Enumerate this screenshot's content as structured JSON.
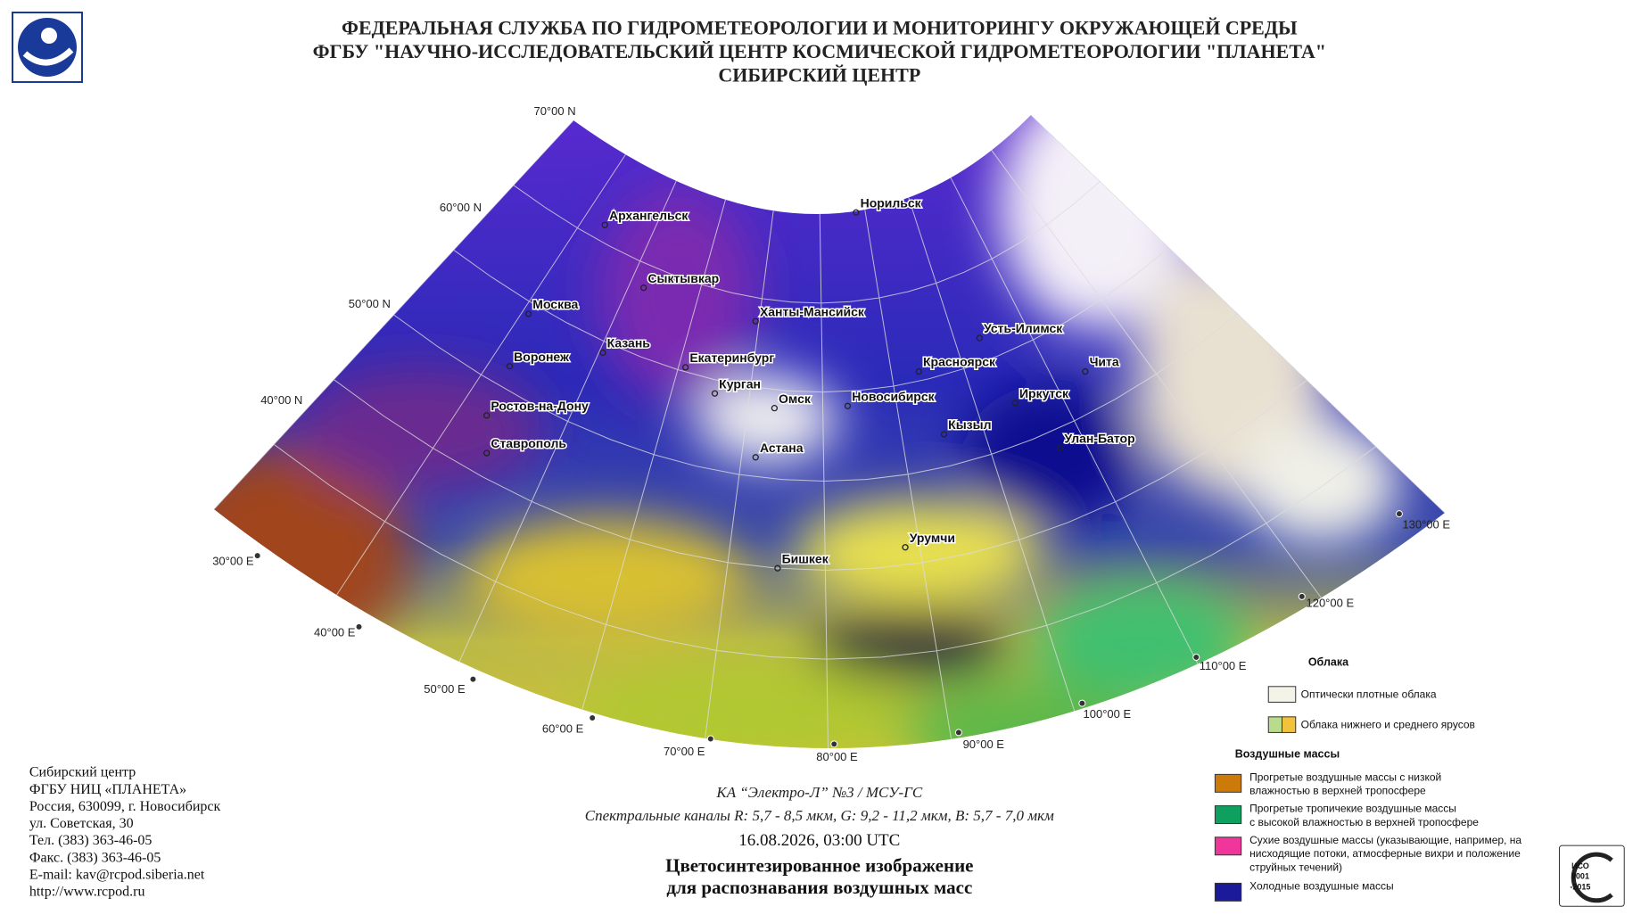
{
  "header": {
    "lines": [
      "ФЕДЕРАЛЬНАЯ СЛУЖБА ПО ГИДРОМЕТЕОРОЛОГИИ И МОНИТОРИНГУ ОКРУЖАЮЩЕЙ СРЕДЫ",
      "ФГБУ \"НАУЧНО-ИССЛЕДОВАТЕЛЬСКИЙ ЦЕНТР КОСМИЧЕСКОЙ ГИДРОМЕТЕОРОЛОГИИ \"ПЛАНЕТА\"",
      "СИБИРСКИЙ ЦЕНТР"
    ]
  },
  "map": {
    "latitude_labels": [
      "70°00 N",
      "60°00 N",
      "50°00 N",
      "40°00 N"
    ],
    "longitude_labels": [
      "30°00 E",
      "40°00 E",
      "50°00 E",
      "60°00 E",
      "70°00 E",
      "80°00 E",
      "90°00 E",
      "100°00 E",
      "110°00 E",
      "120°00 E",
      "130°00 E"
    ],
    "cities": [
      "Архангельск",
      "Норильск",
      "Сыктывкар",
      "Москва",
      "Ханты-Мансийск",
      "Усть-Илимск",
      "Казань",
      "Воронеж",
      "Екатеринбург",
      "Красноярск",
      "Чита",
      "Курган",
      "Иркутск",
      "Омск",
      "Новосибирск",
      "Ростов-на-Дону",
      "Кызыл",
      "Улан-Батор",
      "Ставрополь",
      "Астана",
      "Урумчи",
      "Бишкек"
    ]
  },
  "legend": {
    "clouds_title": "Облака",
    "clouds": [
      {
        "label": [
          "Оптически плотные облака"
        ],
        "colors": [
          "#f3f3e8"
        ]
      },
      {
        "label": [
          "Облака нижнего и среднего ярусов"
        ],
        "colors": [
          "#b8dc8c",
          "#f2c23c"
        ]
      }
    ],
    "air_masses_title": "Воздушные массы",
    "air_masses": [
      {
        "label": [
          "Прогретые воздушные массы с низкой",
          "влажностью в верхней тропосфере"
        ],
        "colors": [
          "#cc7a0a"
        ]
      },
      {
        "label": [
          "Прогретые тропичекие воздушные массы",
          "с высокой влажностью в верхней тропосфере"
        ],
        "colors": [
          "#0fa060"
        ]
      },
      {
        "label": [
          "Сухие воздушные массы (указывающие, например, на",
          "нисходящие потоки, атмосферные вихри и положение",
          "струйных течений)"
        ],
        "colors": [
          "#f0369a"
        ]
      },
      {
        "label": [
          "Холодные воздушные массы"
        ],
        "colors": [
          "#1a1a9a"
        ]
      }
    ]
  },
  "footer": {
    "lines": [
      "Сибирский центр",
      "ФГБУ НИЦ «ПЛАНЕТА»",
      "Россия, 630099, г. Новосибирск",
      "ул. Советская, 30",
      "Тел. (383) 363-46-05",
      "Факс. (383) 363-46-05",
      "E-mail: kav@rcpod.siberia.net",
      "http://www.rcpod.ru"
    ]
  },
  "caption": {
    "satellite": "КА “Электро-Л” №3 / МСУ-ГС",
    "channels": "Спектральные каналы R: 5,7 - 8,5 мкм, G: 9,2 - 11,2 мкм, B: 5,7 - 7,0 мкм",
    "datetime": "16.08.2026, 03:00 UTC",
    "title": [
      "Цветосинтезированное изображение",
      "для распознавания воздушных масс"
    ]
  },
  "certificate": [
    "ИСО",
    "9001",
    "-2015"
  ]
}
